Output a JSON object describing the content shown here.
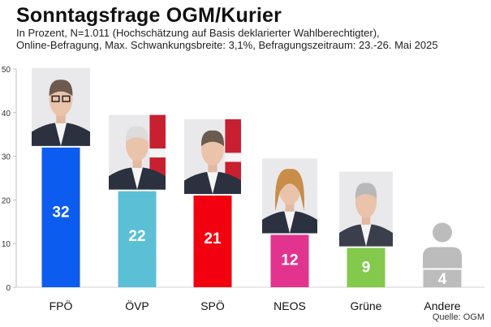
{
  "title": "Sonntagsfrage OGM/Kurier",
  "subtitle_line1": "In Prozent, N=1.011 (Hochschätzung auf Basis deklarierter Wahlberechtigter),",
  "subtitle_line2": "Online-Befragung, Max. Schwankungsbreite: 3,1%, Befragungszeitraum: 23.-26. Mai 2025",
  "source": "Quelle: OGM",
  "chart_data": {
    "type": "bar",
    "categories": [
      "FPÖ",
      "ÖVP",
      "SPÖ",
      "NEOS",
      "Grüne",
      "Andere"
    ],
    "values": [
      32,
      22,
      21,
      12,
      9,
      4
    ],
    "data_labels": [
      "32",
      "22",
      "21",
      "12",
      "9",
      "4"
    ],
    "colors": [
      "#0d5cf0",
      "#5bbfd6",
      "#f2000f",
      "#e2348e",
      "#82c94c",
      "#bcbcbc"
    ],
    "ylim": [
      0,
      50
    ],
    "yticks": [
      0,
      10,
      20,
      30,
      40,
      50
    ],
    "grid": false,
    "legend": "none",
    "images": [
      "portrait-icon",
      "portrait-icon",
      "portrait-icon",
      "portrait-icon",
      "portrait-icon",
      "generic-person-icon"
    ]
  }
}
